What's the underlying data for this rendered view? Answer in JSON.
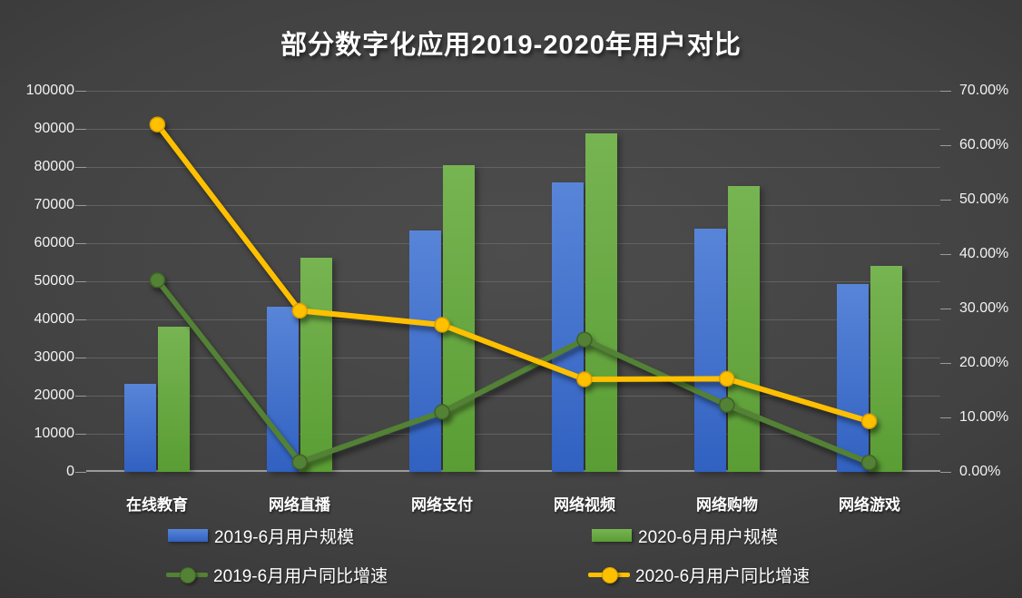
{
  "title": "部分数字化应用2019-2020年用户对比",
  "chart_data": {
    "type": "bar",
    "subtype": "combo-bar-line-dual-axis",
    "title": "部分数字化应用2019-2020年用户对比",
    "categories": [
      "在线教育",
      "网络直播",
      "网络支付",
      "网络视频",
      "网络购物",
      "网络游戏"
    ],
    "series": [
      {
        "name": "2019-6月用户规模",
        "type": "bar",
        "axis": "left",
        "color": "#4472C4",
        "gradient": [
          "#5885D8",
          "#3161C1"
        ],
        "values": [
          23200,
          43300,
          63300,
          75900,
          63900,
          49400
        ]
      },
      {
        "name": "2020-6月用户规模",
        "type": "bar",
        "axis": "left",
        "color": "#70AD47",
        "gradient": [
          "#77B452",
          "#5A9D34"
        ],
        "values": [
          38100,
          56200,
          80500,
          88800,
          75000,
          54000
        ]
      },
      {
        "name": "2019-6月用户同比增速",
        "type": "line",
        "axis": "right",
        "color": "#538135",
        "marker_edge": "#3F6224",
        "unit": "%",
        "values": [
          35.2,
          1.8,
          11.0,
          24.3,
          12.3,
          1.7
        ]
      },
      {
        "name": "2020-6月用户同比增速",
        "type": "line",
        "axis": "right",
        "color": "#FFC000",
        "marker_edge": "#D89E00",
        "unit": "%",
        "values": [
          63.8,
          29.6,
          27.0,
          17.0,
          17.1,
          9.3
        ]
      }
    ],
    "left_axis": {
      "min": 0,
      "max": 100000,
      "step": 10000,
      "tick_labels": [
        "0",
        "10000",
        "20000",
        "30000",
        "40000",
        "50000",
        "60000",
        "70000",
        "80000",
        "90000",
        "100000"
      ]
    },
    "right_axis": {
      "min": 0,
      "max": 70,
      "step": 10,
      "tick_labels": [
        "0.00%",
        "10.00%",
        "20.00%",
        "30.00%",
        "40.00%",
        "50.00%",
        "60.00%",
        "70.00%"
      ]
    },
    "grid": "horizontal-only",
    "legend_position": "bottom-two-rows"
  },
  "colors": {
    "background": "#3d3d3d",
    "text": "#ffffff",
    "gridline": "#6b6b6b",
    "axis_line": "#9a9a9a",
    "bar_2019": "#4472C4",
    "bar_2020": "#70AD47",
    "line_2019": "#538135",
    "line_2020": "#FFC000"
  }
}
